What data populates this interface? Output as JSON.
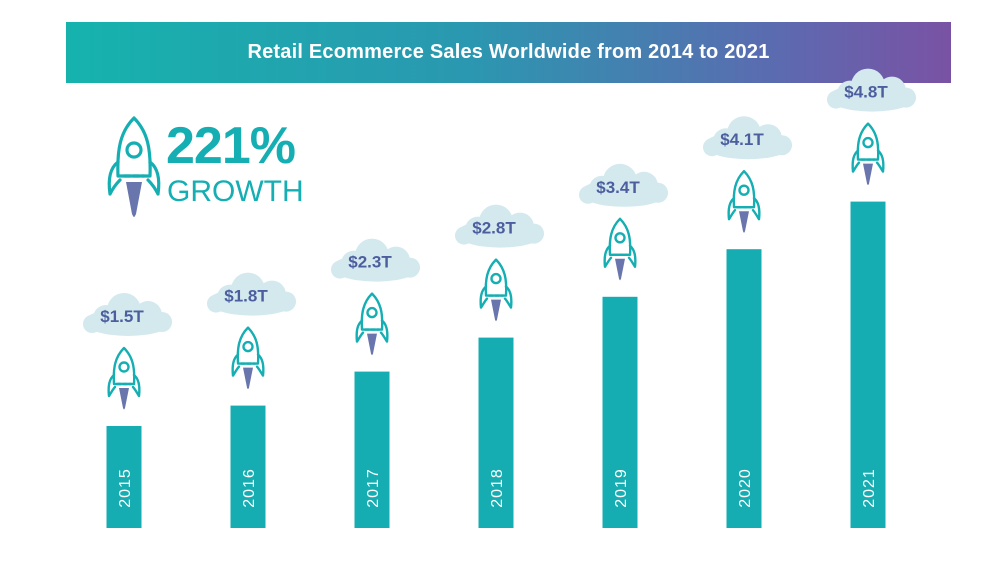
{
  "banner": {
    "title": "Retail Ecommerce Sales Worldwide from 2014 to 2021"
  },
  "growth": {
    "percent": "221%",
    "label": "GROWTH",
    "icon": "rocket-icon"
  },
  "colors": {
    "bar": "#15adb1",
    "cloud": "#d3e9ee",
    "value_text": "#4d5e9f",
    "rocket_stroke": "#15aeb2",
    "rocket_flame": "#4d5e9f"
  },
  "chart_data": {
    "type": "bar",
    "title": "Retail Ecommerce Sales Worldwide from 2014 to 2021",
    "categories": [
      "2015",
      "2016",
      "2017",
      "2018",
      "2019",
      "2020",
      "2021"
    ],
    "values": [
      1.5,
      1.8,
      2.3,
      2.8,
      3.4,
      4.1,
      4.8
    ],
    "value_labels": [
      "$1.5T",
      "$1.8T",
      "$2.3T",
      "$2.8T",
      "$3.4T",
      "$4.1T",
      "$4.8T"
    ],
    "xlabel": "",
    "ylabel": "",
    "grid": false
  }
}
